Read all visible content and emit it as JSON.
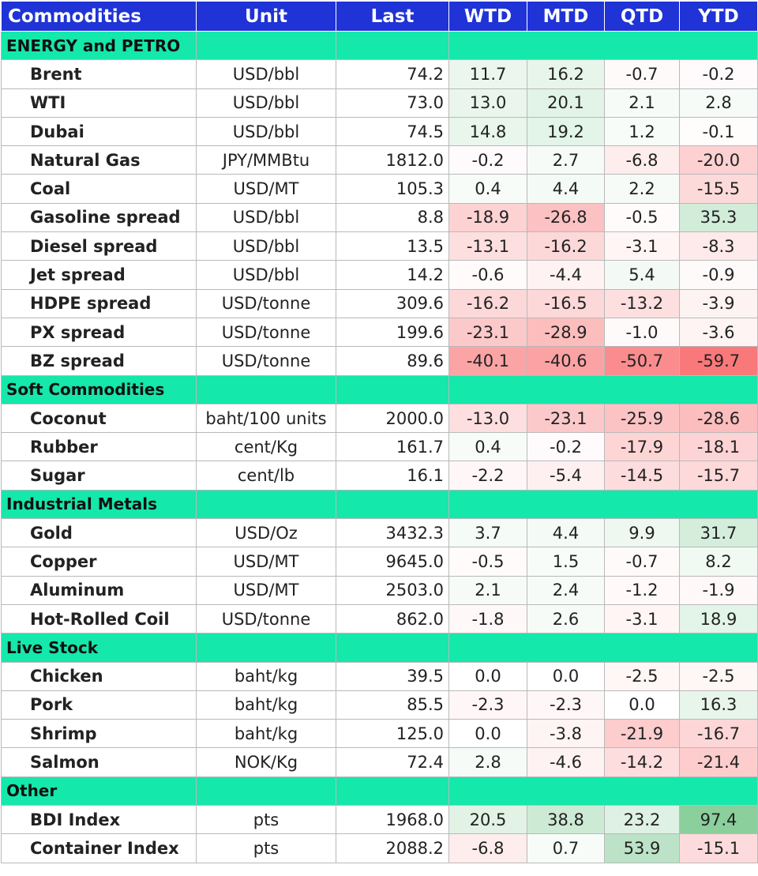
{
  "header": [
    "Commodities",
    "Unit",
    "Last",
    "WTD",
    "MTD",
    "QTD",
    "YTD"
  ],
  "sections": [
    {
      "name": "ENERGY and PETRO",
      "rows": [
        {
          "name": "Brent",
          "unit": "USD/bbl",
          "last": "74.2",
          "wtd": "11.7",
          "mtd": "16.2",
          "qtd": "-0.7",
          "ytd": "-0.2"
        },
        {
          "name": "WTI",
          "unit": "USD/bbl",
          "last": "73.0",
          "wtd": "13.0",
          "mtd": "20.1",
          "qtd": "2.1",
          "ytd": "2.8"
        },
        {
          "name": "Dubai",
          "unit": "USD/bbl",
          "last": "74.5",
          "wtd": "14.8",
          "mtd": "19.2",
          "qtd": "1.2",
          "ytd": "-0.1"
        },
        {
          "name": "Natural Gas",
          "unit": "JPY/MMBtu",
          "last": "1812.0",
          "wtd": "-0.2",
          "mtd": "2.7",
          "qtd": "-6.8",
          "ytd": "-20.0"
        },
        {
          "name": "Coal",
          "unit": "USD/MT",
          "last": "105.3",
          "wtd": "0.4",
          "mtd": "4.4",
          "qtd": "2.2",
          "ytd": "-15.5"
        },
        {
          "name": "Gasoline spread",
          "unit": "USD/bbl",
          "last": "8.8",
          "wtd": "-18.9",
          "mtd": "-26.8",
          "qtd": "-0.5",
          "ytd": "35.3"
        },
        {
          "name": "Diesel spread",
          "unit": "USD/bbl",
          "last": "13.5",
          "wtd": "-13.1",
          "mtd": "-16.2",
          "qtd": "-3.1",
          "ytd": "-8.3"
        },
        {
          "name": "Jet spread",
          "unit": "USD/bbl",
          "last": "14.2",
          "wtd": "-0.6",
          "mtd": "-4.4",
          "qtd": "5.4",
          "ytd": "-0.9"
        },
        {
          "name": "HDPE spread",
          "unit": "USD/tonne",
          "last": "309.6",
          "wtd": "-16.2",
          "mtd": "-16.5",
          "qtd": "-13.2",
          "ytd": "-3.9"
        },
        {
          "name": "PX spread",
          "unit": "USD/tonne",
          "last": "199.6",
          "wtd": "-23.1",
          "mtd": "-28.9",
          "qtd": "-1.0",
          "ytd": "-3.6"
        },
        {
          "name": "BZ spread",
          "unit": "USD/tonne",
          "last": "89.6",
          "wtd": "-40.1",
          "mtd": "-40.6",
          "qtd": "-50.7",
          "ytd": "-59.7"
        }
      ]
    },
    {
      "name": "Soft Commodities",
      "rows": [
        {
          "name": "Coconut",
          "unit": "baht/100 units",
          "last": "2000.0",
          "wtd": "-13.0",
          "mtd": "-23.1",
          "qtd": "-25.9",
          "ytd": "-28.6"
        },
        {
          "name": "Rubber",
          "unit": "cent/Kg",
          "last": "161.7",
          "wtd": "0.4",
          "mtd": "-0.2",
          "qtd": "-17.9",
          "ytd": "-18.1"
        },
        {
          "name": "Sugar",
          "unit": "cent/lb",
          "last": "16.1",
          "wtd": "-2.2",
          "mtd": "-5.4",
          "qtd": "-14.5",
          "ytd": "-15.7"
        }
      ]
    },
    {
      "name": "Industrial Metals",
      "rows": [
        {
          "name": "Gold",
          "unit": "USD/Oz",
          "last": "3432.3",
          "wtd": "3.7",
          "mtd": "4.4",
          "qtd": "9.9",
          "ytd": "31.7"
        },
        {
          "name": "Copper",
          "unit": "USD/MT",
          "last": "9645.0",
          "wtd": "-0.5",
          "mtd": "1.5",
          "qtd": "-0.7",
          "ytd": "8.2"
        },
        {
          "name": "Aluminum",
          "unit": "USD/MT",
          "last": "2503.0",
          "wtd": "2.1",
          "mtd": "2.4",
          "qtd": "-1.2",
          "ytd": "-1.9"
        },
        {
          "name": "Hot-Rolled Coil",
          "unit": "USD/tonne",
          "last": "862.0",
          "wtd": "-1.8",
          "mtd": "2.6",
          "qtd": "-3.1",
          "ytd": "18.9"
        }
      ]
    },
    {
      "name": "Live Stock",
      "rows": [
        {
          "name": "Chicken",
          "unit": "baht/kg",
          "last": "39.5",
          "wtd": "0.0",
          "mtd": "0.0",
          "qtd": "-2.5",
          "ytd": "-2.5"
        },
        {
          "name": "Pork",
          "unit": "baht/kg",
          "last": "85.5",
          "wtd": "-2.3",
          "mtd": "-2.3",
          "qtd": "0.0",
          "ytd": "16.3"
        },
        {
          "name": "Shrimp",
          "unit": "baht/kg",
          "last": "125.0",
          "wtd": "0.0",
          "mtd": "-3.8",
          "qtd": "-21.9",
          "ytd": "-16.7"
        },
        {
          "name": "Salmon",
          "unit": "NOK/Kg",
          "last": "72.4",
          "wtd": "2.8",
          "mtd": "-4.6",
          "qtd": "-14.2",
          "ytd": "-21.4"
        }
      ]
    },
    {
      "name": "Other",
      "rows": [
        {
          "name": "BDI Index",
          "unit": "pts",
          "last": "1968.0",
          "wtd": "20.5",
          "mtd": "38.8",
          "qtd": "23.2",
          "ytd": "97.4"
        },
        {
          "name": "Container Index",
          "unit": "pts",
          "last": "2088.2",
          "wtd": "-6.8",
          "mtd": "0.7",
          "qtd": "53.9",
          "ytd": "-15.1"
        }
      ]
    }
  ]
}
